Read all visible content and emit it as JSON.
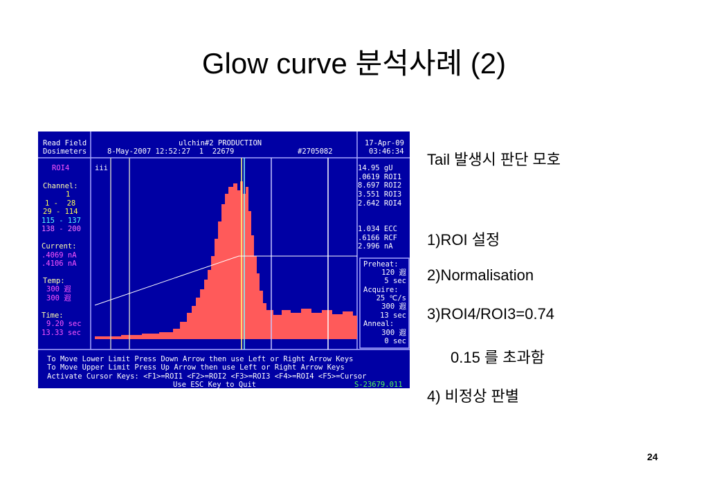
{
  "title": "Glow curve 분석사례 (2)",
  "screenshot": {
    "header": {
      "left": [
        "Read Field",
        "Dosimeters"
      ],
      "center": [
        "ulchin#2 PRODUCTION",
        "8-May-2007 12:52:27  1  22679",
        "#2705082"
      ],
      "right": [
        "17-Apr-09",
        "03:46:34"
      ]
    },
    "left_panel": [
      "ROI4",
      "Channel:",
      "1",
      "1 -  28",
      "29 - 114",
      "115 - 137",
      "138 - 200",
      "Current:",
      ".4069 nA",
      ".4106 nA",
      "Temp:",
      "300 遐",
      "300 遐",
      "Time:",
      "9.20 sec",
      "13.33 sec"
    ],
    "plot_label": "iii",
    "right_panel": [
      "14.95 gU",
      ".0619 ROI1",
      "8.697 ROI2",
      "3.551 ROI3",
      "2.642 ROI4",
      "1.034 ECC",
      ".6166 RCF",
      "2.996 nA"
    ],
    "settings": [
      "Preheat:",
      "120 遐",
      "5 sec",
      "Acquire:",
      "25 ℃/s",
      "300 遐",
      "13 sec",
      "Anneal:",
      "300 遐",
      "0 sec"
    ],
    "footer": [
      "To Move Lower Limit Press Down Arrow then use Left or Right Arrow Keys",
      "To Move Upper Limit Press Up Arrow then use Left or Right Arrow Keys",
      "Activate Cursor Keys: <F1>=ROI1 <F2>=ROI2 <F3>=ROI3 <F4>=ROI4 <F5>=Cursor",
      "Use ESC Key to Quit",
      "S-23679.011"
    ]
  },
  "notes": [
    "Tail 발생시 판단 모호",
    "1)ROI 설정",
    "2)Normalisation",
    "3)ROI4/ROI3=0.74",
    "0.15 를 초과함",
    "4) 비정상 판별"
  ],
  "page_number": "24"
}
